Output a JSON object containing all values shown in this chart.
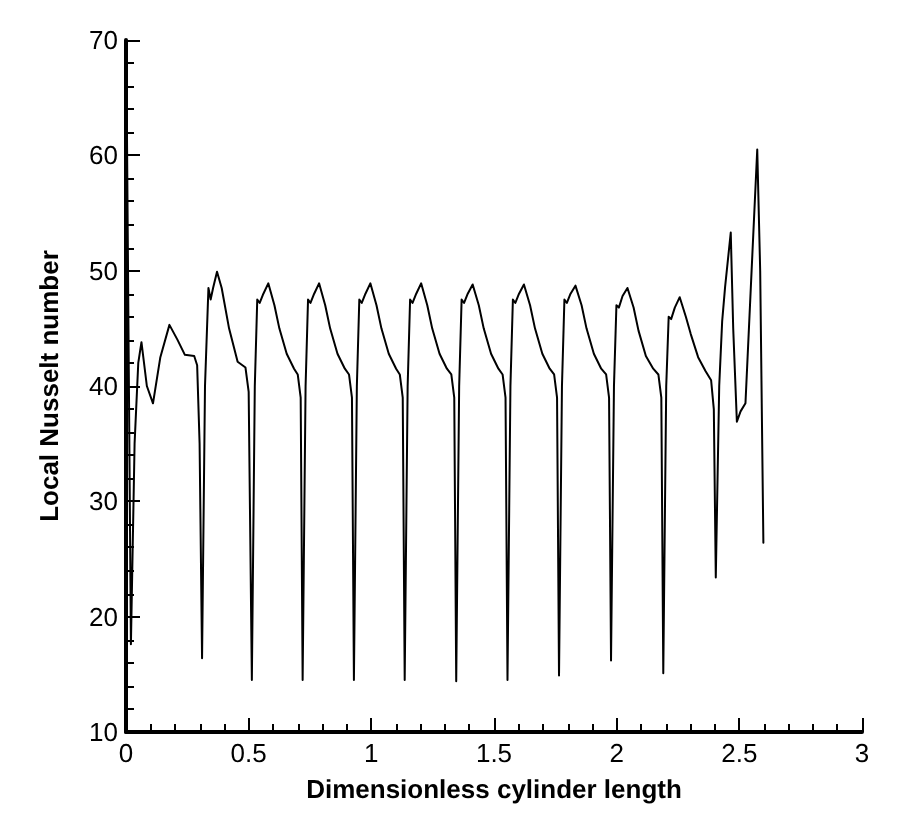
{
  "chart_data": {
    "type": "line",
    "xlabel": "Dimensionless cylinder length",
    "ylabel": "Local Nusselt number",
    "xlim": [
      0,
      3
    ],
    "ylim": [
      10,
      70
    ],
    "xticks": [
      0,
      0.5,
      1,
      1.5,
      2,
      2.5,
      3
    ],
    "yticks": [
      10,
      20,
      30,
      40,
      50,
      60,
      70
    ],
    "grid": false,
    "marker": "none",
    "line_style": "solid",
    "series": [
      {
        "color": "#000000",
        "x": [
          0.003,
          0.02,
          0.035,
          0.05,
          0.063,
          0.085,
          0.11,
          0.14,
          0.177,
          0.21,
          0.24,
          0.278,
          0.29,
          0.3,
          0.31,
          0.322,
          0.336,
          0.345,
          0.355,
          0.371,
          0.39,
          0.42,
          0.455,
          0.487,
          0.5,
          0.513,
          0.525,
          0.535,
          0.545,
          0.56,
          0.58,
          0.605,
          0.625,
          0.655,
          0.685,
          0.7,
          0.712,
          0.72,
          0.732,
          0.742,
          0.752,
          0.767,
          0.787,
          0.812,
          0.832,
          0.862,
          0.892,
          0.909,
          0.921,
          0.929,
          0.941,
          0.951,
          0.961,
          0.976,
          0.996,
          1.021,
          1.041,
          1.071,
          1.101,
          1.116,
          1.128,
          1.136,
          1.148,
          1.158,
          1.168,
          1.183,
          1.203,
          1.228,
          1.248,
          1.278,
          1.308,
          1.326,
          1.338,
          1.346,
          1.358,
          1.368,
          1.378,
          1.393,
          1.413,
          1.438,
          1.458,
          1.488,
          1.518,
          1.535,
          1.547,
          1.555,
          1.567,
          1.577,
          1.587,
          1.602,
          1.622,
          1.647,
          1.667,
          1.697,
          1.727,
          1.745,
          1.757,
          1.765,
          1.777,
          1.787,
          1.797,
          1.812,
          1.832,
          1.857,
          1.877,
          1.907,
          1.937,
          1.957,
          1.969,
          1.977,
          1.989,
          1.999,
          2.009,
          2.024,
          2.044,
          2.069,
          2.089,
          2.119,
          2.149,
          2.17,
          2.182,
          2.19,
          2.202,
          2.212,
          2.222,
          2.237,
          2.257,
          2.282,
          2.302,
          2.332,
          2.362,
          2.385,
          2.396,
          2.404,
          2.418,
          2.43,
          2.442,
          2.465,
          2.475,
          2.49,
          2.505,
          2.525,
          2.55,
          2.573,
          2.585,
          2.598
        ],
        "values": [
          64.5,
          17.6,
          35,
          42,
          43.8,
          40,
          38.5,
          42.5,
          45.3,
          44,
          42.7,
          42.6,
          41.8,
          35,
          16.4,
          40,
          48.5,
          47.5,
          48.5,
          49.9,
          48.5,
          45,
          42.1,
          41.6,
          39.5,
          14.5,
          40,
          47.5,
          47.2,
          48,
          48.9,
          47,
          45,
          42.8,
          41.5,
          41,
          39,
          14.5,
          40,
          47.5,
          47.2,
          48,
          48.9,
          47,
          45,
          42.8,
          41.5,
          41,
          39,
          14.5,
          40,
          47.5,
          47.2,
          48,
          48.9,
          47,
          45,
          42.8,
          41.5,
          41,
          39,
          14.5,
          40,
          47.5,
          47.2,
          48,
          48.9,
          47,
          45,
          42.8,
          41.5,
          41,
          39,
          14.4,
          40,
          47.5,
          47.2,
          48,
          48.8,
          47,
          45,
          42.8,
          41.5,
          41,
          39,
          14.5,
          40,
          47.5,
          47.2,
          48,
          48.8,
          47,
          45,
          42.8,
          41.5,
          41,
          39,
          14.9,
          40,
          47.5,
          47.2,
          48,
          48.7,
          47,
          45,
          42.8,
          41.5,
          41,
          39,
          16.2,
          40,
          47,
          46.8,
          47.8,
          48.5,
          46.8,
          44.8,
          42.6,
          41.5,
          41,
          39,
          15.1,
          40,
          46,
          45.8,
          46.8,
          47.7,
          46,
          44.5,
          42.5,
          41.3,
          40.5,
          38,
          23.4,
          40,
          45.6,
          48.6,
          53.3,
          45,
          36.9,
          37.8,
          38.5,
          50,
          60.5,
          50,
          26.4
        ]
      }
    ]
  }
}
